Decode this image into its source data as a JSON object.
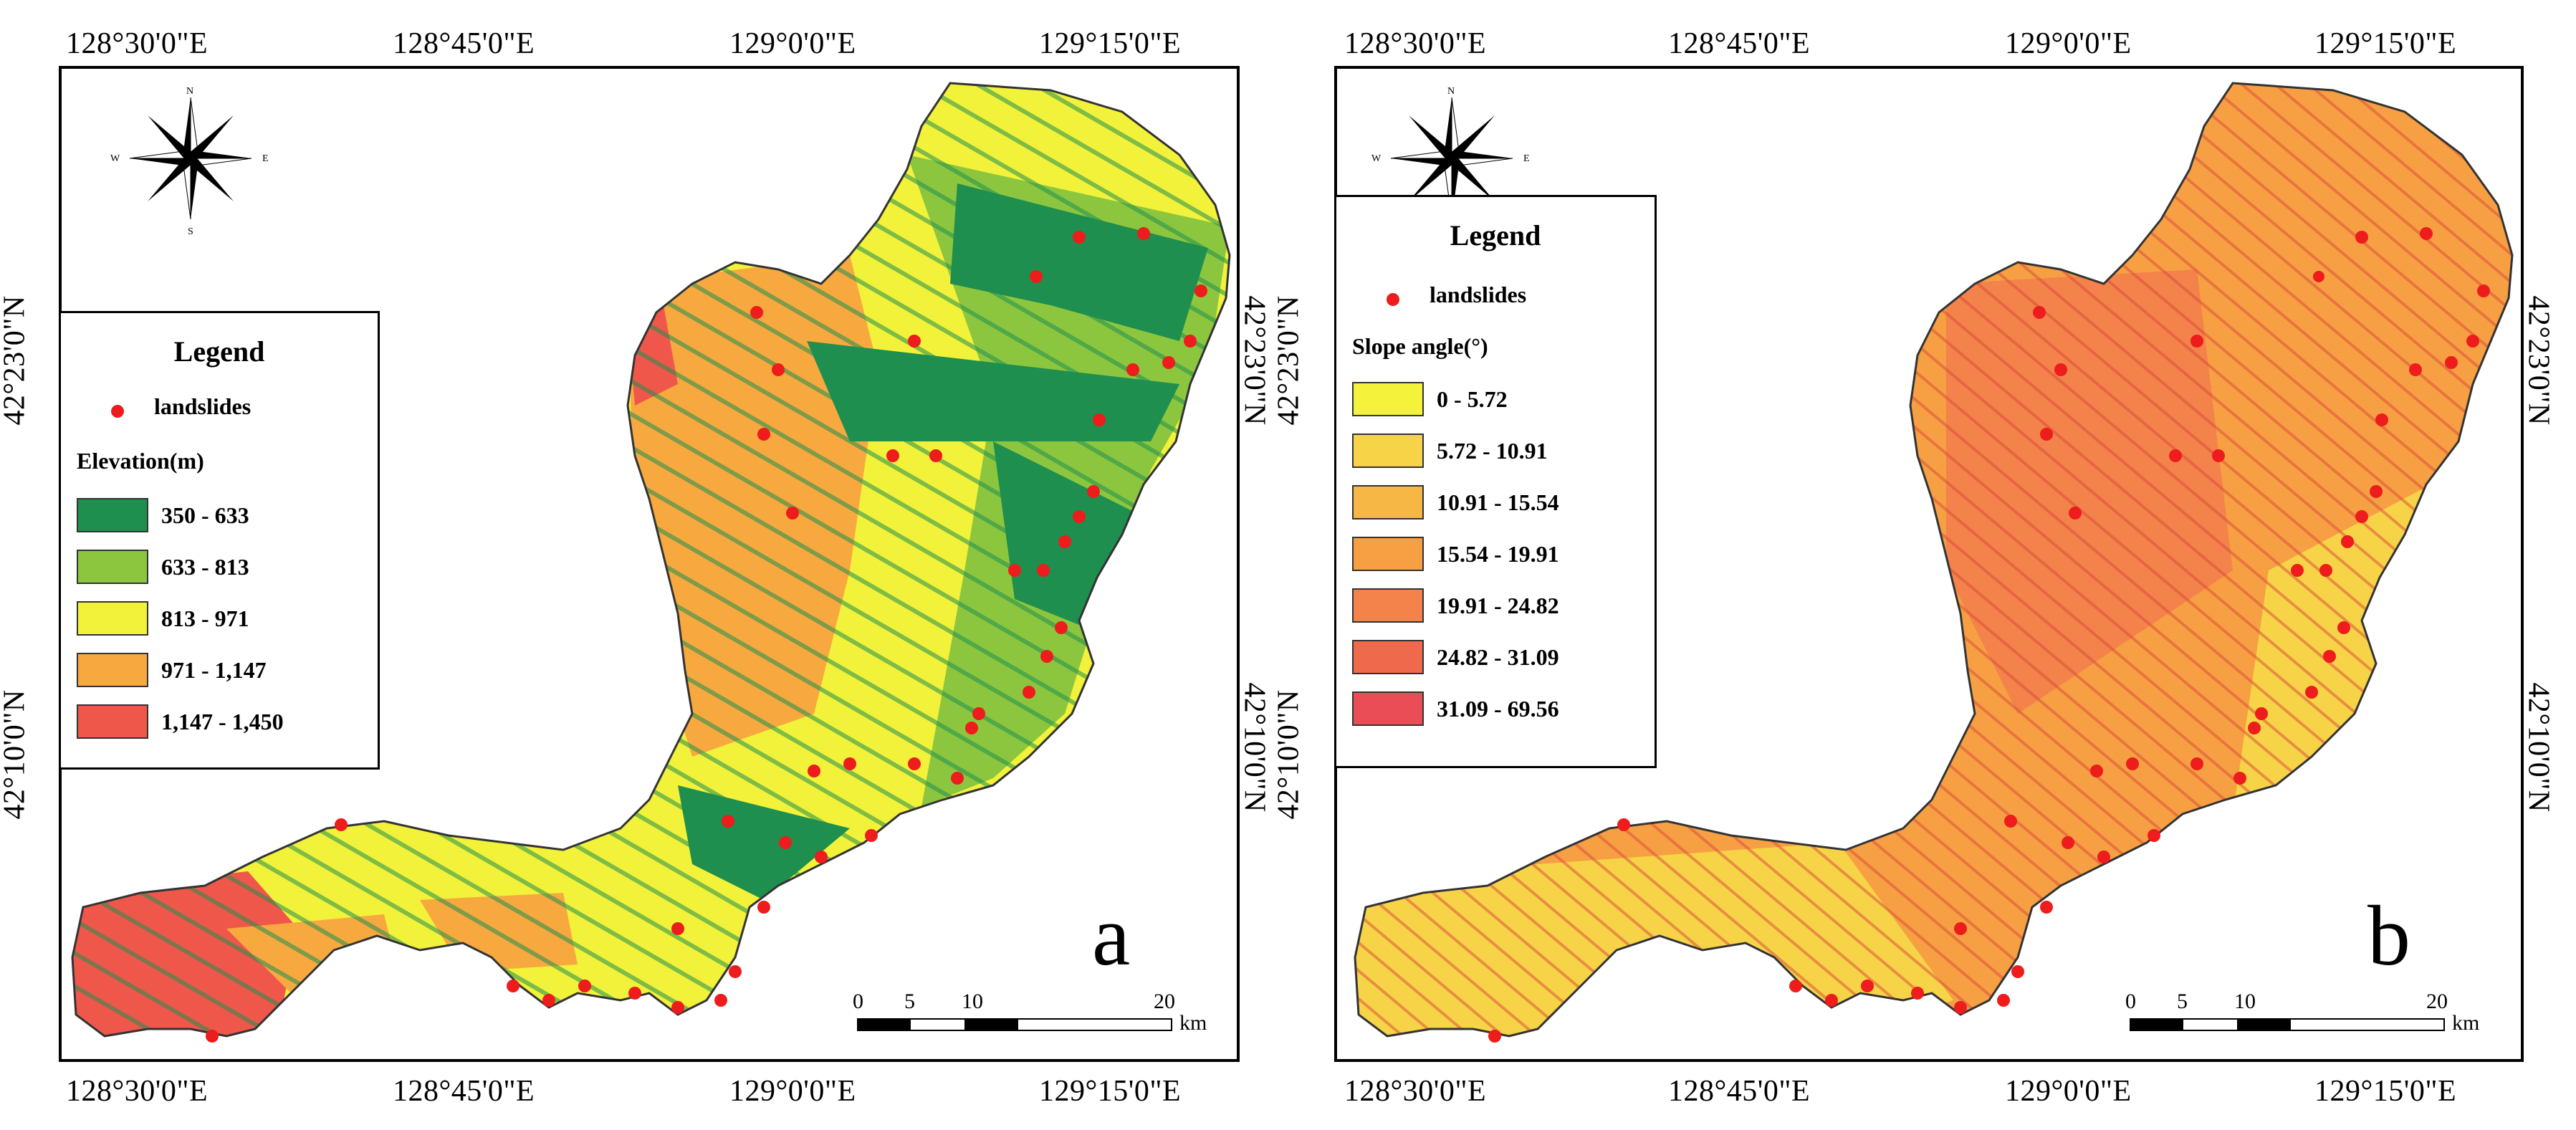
{
  "panel_a": {
    "letter": "a",
    "top_lon": [
      "128°30'0\"E",
      "128°45'0\"E",
      "129°0'0\"E",
      "129°15'0\"E"
    ],
    "bottom_lon": [
      "128°30'0\"E",
      "128°45'0\"E",
      "129°0'0\"E",
      "129°15'0\"E"
    ],
    "left_lat": [
      "42°23'0\"N",
      "42°10'0\"N"
    ],
    "right_lat": [
      "42°23'0\"N",
      "42°10'0\"N"
    ],
    "legend": {
      "title": "Legend",
      "point_label": "landslides",
      "heading": "Elevation(m)",
      "classes": [
        {
          "label": "350 - 633",
          "color": "#1e8f4e"
        },
        {
          "label": "633 - 813",
          "color": "#8cc63f"
        },
        {
          "label": "813 - 971",
          "color": "#f2f23a"
        },
        {
          "label": "971 - 1,147",
          "color": "#f7a940"
        },
        {
          "label": "1,147 - 1,450",
          "color": "#f0574b"
        }
      ]
    },
    "scale": {
      "ticks": [
        "0",
        "5",
        "10",
        "20"
      ],
      "unit": "km"
    },
    "compass": {
      "n": "N",
      "s": "S",
      "e": "E",
      "w": "W"
    }
  },
  "panel_b": {
    "letter": "b",
    "top_lon": [
      "128°30'0\"E",
      "128°45'0\"E",
      "129°0'0\"E",
      "129°15'0\"E"
    ],
    "bottom_lon": [
      "128°30'0\"E",
      "128°45'0\"E",
      "129°0'0\"E",
      "129°15'0\"E"
    ],
    "left_lat": [
      "42°23'0\"N",
      "42°10'0\"N"
    ],
    "right_lat": [
      "42°23'0\"N",
      "42°10'0\"N"
    ],
    "legend": {
      "title": "Legend",
      "point_label": "landslides",
      "heading": "Slope angle(°)",
      "classes": [
        {
          "label": "0 - 5.72",
          "color": "#f5f23c"
        },
        {
          "label": "5.72 - 10.91",
          "color": "#f7d447"
        },
        {
          "label": "10.91 - 15.54",
          "color": "#f7b744"
        },
        {
          "label": "15.54 - 19.91",
          "color": "#f6a043"
        },
        {
          "label": "19.91 - 24.82",
          "color": "#f3834a"
        },
        {
          "label": "24.82 - 31.09",
          "color": "#ef6a4d"
        },
        {
          "label": "31.09 - 69.56",
          "color": "#ea4d55"
        }
      ]
    },
    "scale": {
      "ticks": [
        "0",
        "5",
        "10",
        "20"
      ],
      "unit": "km"
    },
    "compass": {
      "n": "N",
      "s": "S",
      "e": "E",
      "w": "W"
    }
  },
  "colors": {
    "landslide": "#ee1c1c"
  }
}
